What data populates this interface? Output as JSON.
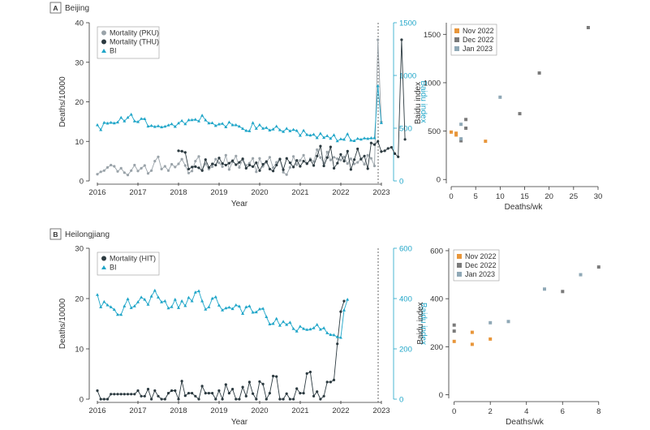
{
  "colors": {
    "pku": "#9aa3a9",
    "thu": "#2c3a40",
    "hit": "#2c3a40",
    "bi": "#1ea5c8",
    "nov": "#e8963a",
    "dec": "#7a7a7a",
    "jan": "#8fa8b6"
  },
  "chart_data": [
    {
      "id": "beijing-time",
      "type": "line",
      "panel_letter": "A",
      "panel_title": "Beijing",
      "xlabel": "Year",
      "ylabel": "Deaths/10000",
      "ylabel_right": "Baidu index",
      "x_ticks": [
        "2016",
        "2017",
        "2018",
        "2019",
        "2020",
        "2021",
        "2022",
        "2023"
      ],
      "y_ticks": [
        "0",
        "10",
        "20",
        "30",
        "40"
      ],
      "y2_ticks": [
        "0",
        "500",
        "1000",
        "1500"
      ],
      "ylim": [
        0,
        40
      ],
      "y2lim": [
        0,
        1500
      ],
      "xlim": [
        2015.8,
        2023.3
      ],
      "legend": [
        "Mortality (PKU)",
        "Mortality (THU)",
        "BI"
      ],
      "series": [
        {
          "name": "Mortality (PKU)",
          "x_start": 2016.0,
          "x_step": 0.0833,
          "values": [
            1.7,
            2.3,
            2.6,
            3.4,
            4.0,
            3.7,
            2.4,
            3.2,
            2.1,
            1.5,
            2.6,
            4.0,
            2.5,
            3.2,
            3.9,
            1.9,
            2.6,
            5.0,
            6.1,
            3.0,
            3.7,
            2.6,
            4.2,
            3.5,
            4.3,
            5.5,
            3.9,
            2.0,
            2.5,
            5.0,
            6.2,
            2.8,
            4.3,
            3.0,
            3.6,
            5.5,
            4.6,
            3.6,
            6.5,
            2.9,
            4.8,
            6.3,
            3.4,
            5.4,
            3.9,
            4.5,
            5.7,
            2.3,
            5.7,
            3.7,
            4.7,
            6.0,
            3.3,
            4.7,
            5.6,
            2.2,
            1.6,
            3.4,
            6.2,
            4.1,
            5.2,
            6.5,
            4.3,
            5.6,
            4.9,
            7.9,
            5.9,
            4.5,
            7.3,
            5.3,
            6.0,
            5.6,
            5.3,
            6.1,
            4.4,
            5.6,
            4.3,
            4.7,
            5.6,
            4.2,
            6.5,
            5.7,
            3.8,
            35.7,
            14.9
          ]
        },
        {
          "name": "Mortality (THU)",
          "x_start": 2018.0,
          "x_step": 0.0833,
          "values": [
            7.6,
            7.5,
            7.2,
            3.0,
            3.5,
            3.6,
            3.3,
            2.6,
            5.4,
            3.4,
            4.3,
            4.0,
            5.8,
            4.4,
            4.0,
            4.5,
            5.1,
            4.1,
            4.7,
            5.6,
            3.2,
            4.0,
            3.6,
            4.6,
            2.6,
            4.2,
            4.9,
            3.0,
            2.5,
            4.0,
            5.5,
            2.8,
            5.7,
            4.6,
            3.5,
            5.2,
            3.7,
            5.0,
            4.4,
            5.3,
            3.9,
            6.3,
            8.8,
            3.8,
            5.9,
            8.6,
            3.2,
            4.5,
            6.7,
            5.0,
            7.5,
            2.9,
            5.4,
            8.1,
            5.5,
            6.3,
            3.1,
            9.6,
            9.2,
            10.0,
            7.4,
            7.6,
            8.2,
            8.5,
            6.9,
            6.1,
            35.7,
            10.5
          ]
        },
        {
          "name": "BI",
          "x_start": 2016.0,
          "x_step": 0.0833,
          "values": [
            530,
            484,
            552,
            545,
            553,
            548,
            556,
            600,
            567,
            601,
            630,
            567,
            560,
            589,
            588,
            518,
            523,
            514,
            521,
            510,
            516,
            528,
            539,
            515,
            548,
            570,
            539,
            577,
            578,
            582,
            566,
            621,
            576,
            548,
            549,
            523,
            538,
            543,
            511,
            556,
            530,
            530,
            517,
            495,
            476,
            473,
            551,
            496,
            531,
            498,
            504,
            480,
            490,
            518,
            483,
            467,
            496,
            473,
            486,
            476,
            430,
            478,
            438,
            432,
            441,
            408,
            449,
            410,
            427,
            402,
            435,
            378,
            397,
            392,
            445,
            385,
            380,
            401,
            393,
            405,
            400,
            406,
            407,
            900,
            550
          ]
        }
      ]
    },
    {
      "id": "beijing-scatter",
      "type": "scatter",
      "xlabel": "Deaths/wk",
      "ylabel": "Baidu index",
      "x_ticks": [
        "0",
        "5",
        "10",
        "15",
        "20",
        "25",
        "30"
      ],
      "y_ticks": [
        "0",
        "500",
        "1000",
        "1500"
      ],
      "xlim": [
        -1,
        30.5
      ],
      "ylim": [
        -40,
        1620
      ],
      "legend": [
        "Nov 2022",
        "Dec 2022",
        "Jan 2023"
      ],
      "series": [
        {
          "name": "Nov 2022",
          "x": [
            0,
            1,
            1,
            7
          ],
          "y": [
            490,
            478,
            460,
            395
          ]
        },
        {
          "name": "Dec 2022",
          "x": [
            3,
            3,
            2,
            14,
            18,
            28
          ],
          "y": [
            620,
            530,
            400,
            680,
            1100,
            1570
          ]
        },
        {
          "name": "Jan 2023",
          "x": [
            2,
            2,
            10
          ],
          "y": [
            570,
            420,
            850
          ]
        }
      ]
    },
    {
      "id": "heilongjiang-time",
      "type": "line",
      "panel_letter": "B",
      "panel_title": "Heilongjiang",
      "xlabel": "Year",
      "ylabel": "Deaths/10000",
      "ylabel_right": "Baidu index",
      "x_ticks": [
        "2016",
        "2017",
        "2018",
        "2019",
        "2020",
        "2021",
        "2022",
        "2023"
      ],
      "y_ticks": [
        "0",
        "10",
        "20",
        "30"
      ],
      "y2_ticks": [
        "0",
        "200",
        "400",
        "600"
      ],
      "ylim": [
        0,
        30
      ],
      "y2lim": [
        0,
        600
      ],
      "xlim": [
        2015.8,
        2023.3
      ],
      "legend": [
        "Mortality (HIT)",
        "BI"
      ],
      "series": [
        {
          "name": "Mortality (HIT)",
          "x_start": 2016.0,
          "x_step": 0.0833,
          "values": [
            1.7,
            0,
            0,
            0,
            1,
            1,
            1,
            1,
            1,
            1,
            1,
            1,
            1.7,
            0.6,
            0.6,
            2,
            0,
            1.7,
            0.6,
            0,
            0,
            1.2,
            1.7,
            1.7,
            0,
            3.6,
            0.7,
            1.2,
            1.2,
            0.6,
            0,
            2.6,
            1.2,
            1.2,
            1.2,
            0,
            1.7,
            0,
            2.9,
            1.2,
            2.0,
            0,
            0,
            2.4,
            0.6,
            3.4,
            1.1,
            0,
            3.5,
            3.0,
            0,
            1.2,
            4.6,
            4.5,
            0,
            0,
            1.1,
            0,
            0,
            2.1,
            1.2,
            1.2,
            5.1,
            5.4,
            0.6,
            1.5,
            0,
            0.6,
            3.4,
            3.4,
            3.8,
            11.0,
            17.4,
            19.5
          ]
        },
        {
          "name": "BI",
          "x_start": 2016.0,
          "x_step": 0.0833,
          "values": [
            415,
            366,
            387,
            374,
            366,
            356,
            336,
            336,
            370,
            398,
            363,
            370,
            386,
            405,
            396,
            376,
            409,
            432,
            405,
            386,
            390,
            362,
            367,
            396,
            363,
            390,
            371,
            404,
            390,
            425,
            430,
            390,
            357,
            366,
            400,
            406,
            373,
            354,
            362,
            365,
            359,
            374,
            369,
            340,
            366,
            370,
            345,
            346,
            358,
            360,
            327,
            298,
            300,
            320,
            293,
            308,
            296,
            305,
            280,
            270,
            289,
            280,
            276,
            278,
            283,
            296,
            277,
            283,
            263,
            256,
            255,
            247,
            245,
            354,
            396
          ]
        }
      ]
    },
    {
      "id": "heilongjiang-scatter",
      "type": "scatter",
      "xlabel": "Deaths/wk",
      "ylabel": "Baidu index",
      "x_ticks": [
        "0",
        "2",
        "4",
        "6",
        "8"
      ],
      "y_ticks": [
        "0",
        "200",
        "400",
        "600"
      ],
      "xlim": [
        -0.3,
        8.1
      ],
      "ylim": [
        -15,
        610
      ],
      "legend": [
        "Nov 2022",
        "Dec 2022",
        "Jan 2023"
      ],
      "series": [
        {
          "name": "Nov 2022",
          "x": [
            0,
            1,
            1,
            2
          ],
          "y": [
            222,
            260,
            210,
            232
          ]
        },
        {
          "name": "Dec 2022",
          "x": [
            0,
            0,
            6,
            8
          ],
          "y": [
            265,
            290,
            430,
            532
          ]
        },
        {
          "name": "Jan 2023",
          "x": [
            2,
            3,
            5,
            7
          ],
          "y": [
            300,
            305,
            440,
            500
          ]
        }
      ]
    }
  ]
}
